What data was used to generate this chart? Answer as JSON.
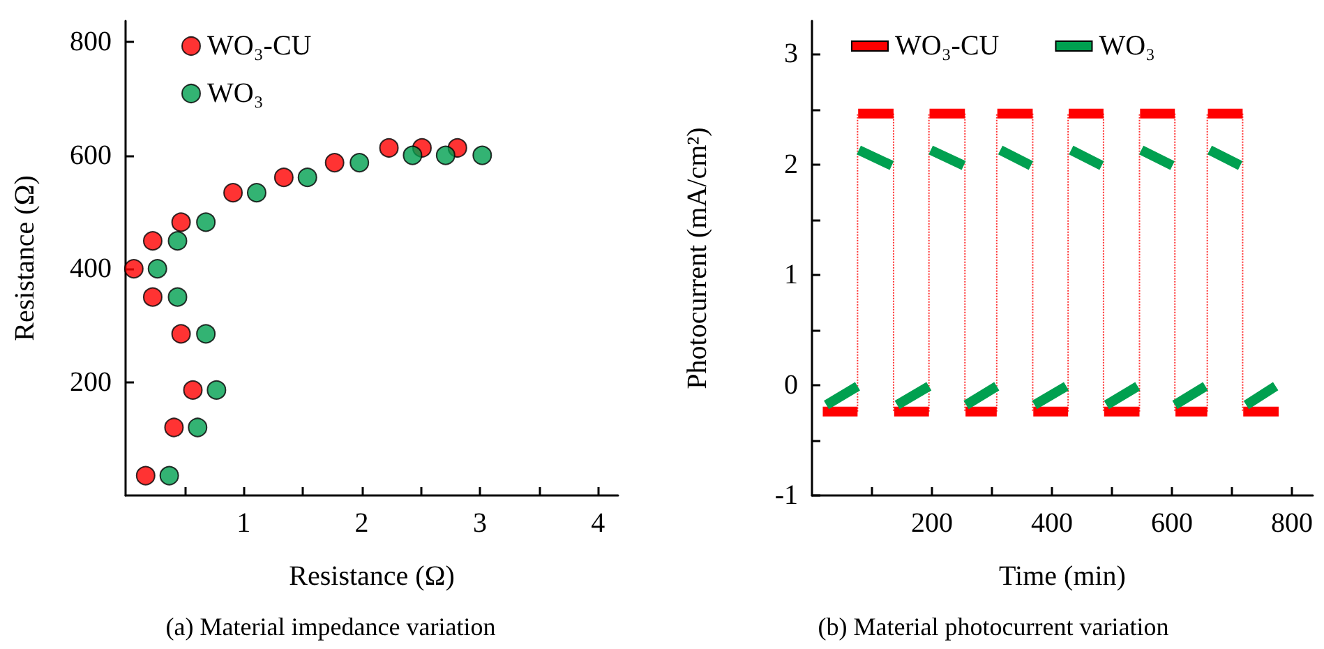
{
  "chart_data": [
    {
      "type": "scatter",
      "xlabel": "Resistance (Ω)",
      "ylabel": "Resistance (Ω)",
      "annotations": [
        "(a) Material impedance variation"
      ],
      "marker": "circle",
      "legend": "top left",
      "grid": false,
      "xlim": [
        0,
        4.17
      ],
      "xticks": [
        {
          "value": 0.5,
          "label": null
        },
        1,
        {
          "value": 1.5,
          "label": null
        },
        2,
        {
          "value": 2.5,
          "label": null
        },
        3,
        {
          "value": 3.5,
          "label": null
        },
        4
      ],
      "ylim": [
        0,
        837
      ],
      "yticks": [
        200,
        400,
        600,
        800
      ],
      "series": [
        {
          "name": "WO₃-CU",
          "color": "#ff0000",
          "x": [
            0.17,
            0.41,
            0.57,
            0.47,
            0.23,
            0.07,
            0.23,
            0.47,
            0.91,
            1.34,
            1.77,
            2.23,
            2.51,
            2.81
          ],
          "values": [
            35,
            120,
            186,
            285,
            350,
            400,
            449,
            482,
            534,
            561,
            587,
            613,
            613,
            613
          ]
        },
        {
          "name": "WO₃",
          "color": "#00a050",
          "x": [
            0.37,
            0.61,
            0.77,
            0.68,
            0.44,
            0.27,
            0.44,
            0.68,
            1.11,
            1.54,
            1.98,
            2.43,
            2.71,
            3.02
          ],
          "values": [
            35,
            120,
            186,
            285,
            350,
            400,
            449,
            482,
            534,
            561,
            587,
            600,
            600,
            600
          ]
        }
      ]
    },
    {
      "type": "line",
      "xlabel": "Time (min)",
      "ylabel": "Photocurrent (mA/cm²)",
      "annotations": [
        "(b) Material photocurrent variation"
      ],
      "legend": "top",
      "grid": false,
      "xlim": [
        0,
        835
      ],
      "xticks": [
        {
          "value": 100,
          "label": null
        },
        200,
        {
          "value": 300,
          "label": null
        },
        400,
        {
          "value": 500,
          "label": null
        },
        600,
        {
          "value": 700,
          "label": null
        },
        800
      ],
      "ylim": [
        -1,
        3.3
      ],
      "yticks": [
        -1,
        {
          "value": -0.5,
          "label": null
        },
        0,
        {
          "value": 0.5,
          "label": null
        },
        1,
        {
          "value": 1.5,
          "label": null
        },
        2,
        {
          "value": 2.5,
          "label": null
        },
        3
      ],
      "series": [
        {
          "name": "WO₃-CU",
          "color": "#ff0000",
          "x": [
            18,
            76,
            null,
            77,
            136,
            null,
            137,
            195,
            null,
            196,
            255,
            null,
            256,
            308,
            null,
            309,
            368,
            null,
            369,
            427,
            null,
            428,
            486,
            null,
            487,
            546,
            null,
            547,
            605,
            null,
            606,
            659,
            null,
            660,
            718,
            null,
            719,
            778
          ],
          "values": [
            -0.24,
            -0.24,
            null,
            2.46,
            2.46,
            null,
            -0.24,
            -0.24,
            null,
            2.46,
            2.46,
            null,
            -0.24,
            -0.24,
            null,
            2.46,
            2.46,
            null,
            -0.24,
            -0.24,
            null,
            2.46,
            2.46,
            null,
            -0.24,
            -0.24,
            null,
            2.46,
            2.46,
            null,
            -0.24,
            -0.24,
            null,
            2.46,
            2.46,
            null,
            -0.24,
            -0.24
          ]
        },
        {
          "color": "#ff3030",
          "line_style": "dotted",
          "x": [
            76,
            76,
            null,
            136,
            136,
            null,
            195,
            195,
            null,
            255,
            255,
            null,
            308,
            308,
            null,
            368,
            368,
            null,
            427,
            427,
            null,
            486,
            486,
            null,
            546,
            546,
            null,
            605,
            605,
            null,
            659,
            659,
            null,
            718,
            718
          ],
          "values": [
            -0.24,
            2.46,
            null,
            2.46,
            -0.24,
            null,
            -0.24,
            2.46,
            null,
            2.46,
            -0.24,
            null,
            -0.24,
            2.46,
            null,
            2.46,
            -0.24,
            null,
            -0.24,
            2.46,
            null,
            2.46,
            -0.24,
            null,
            -0.24,
            2.46,
            null,
            2.46,
            -0.24,
            null,
            -0.24,
            2.46,
            null,
            2.46,
            -0.24
          ]
        },
        {
          "name": "WO₃",
          "color": "#00a050",
          "x": [
            24,
            76,
            null,
            78,
            133,
            null,
            142,
            195,
            null,
            198,
            253,
            null,
            257,
            308,
            null,
            314,
            365,
            null,
            371,
            424,
            null,
            432,
            483,
            null,
            491,
            543,
            null,
            549,
            601,
            null,
            605,
            656,
            null,
            663,
            714,
            null,
            724,
            773
          ],
          "values": [
            -0.18,
            -0.01,
            null,
            2.13,
            1.99,
            null,
            -0.18,
            -0.01,
            null,
            2.13,
            1.99,
            null,
            -0.18,
            -0.01,
            null,
            2.13,
            1.99,
            null,
            -0.18,
            -0.01,
            null,
            2.13,
            1.99,
            null,
            -0.18,
            -0.01,
            null,
            2.13,
            1.99,
            null,
            -0.18,
            -0.01,
            null,
            2.13,
            1.99,
            null,
            -0.18,
            -0.01
          ]
        }
      ]
    }
  ]
}
